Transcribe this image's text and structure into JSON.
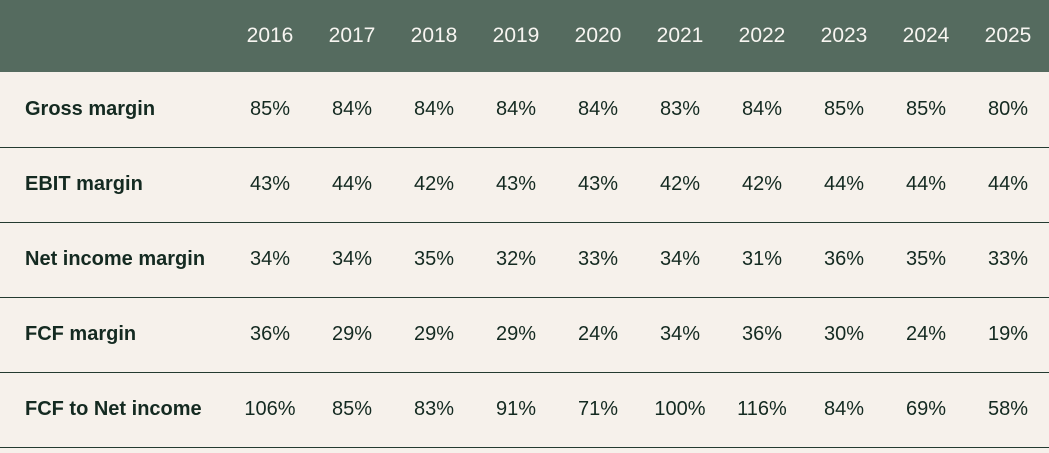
{
  "colors": {
    "header_bg": "#556b5f",
    "header_text": "#f7f5f1",
    "body_bg": "#f6f1eb",
    "text": "#142a21",
    "divider": "#243b30"
  },
  "chart_data": {
    "type": "table",
    "title": "",
    "corner_label": "",
    "columns": [
      "2016",
      "2017",
      "2018",
      "2019",
      "2020",
      "2021",
      "2022",
      "2023",
      "2024",
      "2025"
    ],
    "rows": [
      {
        "label": "Gross margin",
        "values": [
          "85%",
          "84%",
          "84%",
          "84%",
          "84%",
          "83%",
          "84%",
          "85%",
          "85%",
          "80%"
        ]
      },
      {
        "label": "EBIT margin",
        "values": [
          "43%",
          "44%",
          "42%",
          "43%",
          "43%",
          "42%",
          "42%",
          "44%",
          "44%",
          "44%"
        ]
      },
      {
        "label": "Net income margin",
        "values": [
          "34%",
          "34%",
          "35%",
          "32%",
          "33%",
          "34%",
          "31%",
          "36%",
          "35%",
          "33%"
        ]
      },
      {
        "label": "FCF margin",
        "values": [
          "36%",
          "29%",
          "29%",
          "29%",
          "24%",
          "34%",
          "36%",
          "30%",
          "24%",
          "19%"
        ]
      },
      {
        "label": "FCF to Net income",
        "values": [
          "106%",
          "85%",
          "83%",
          "91%",
          "71%",
          "100%",
          "116%",
          "84%",
          "69%",
          "58%"
        ]
      }
    ],
    "layout_hints": {
      "header_background": "#556b5f",
      "row_background": "#f6f1eb",
      "value_alignment": "center",
      "label_column_bold": true
    }
  }
}
